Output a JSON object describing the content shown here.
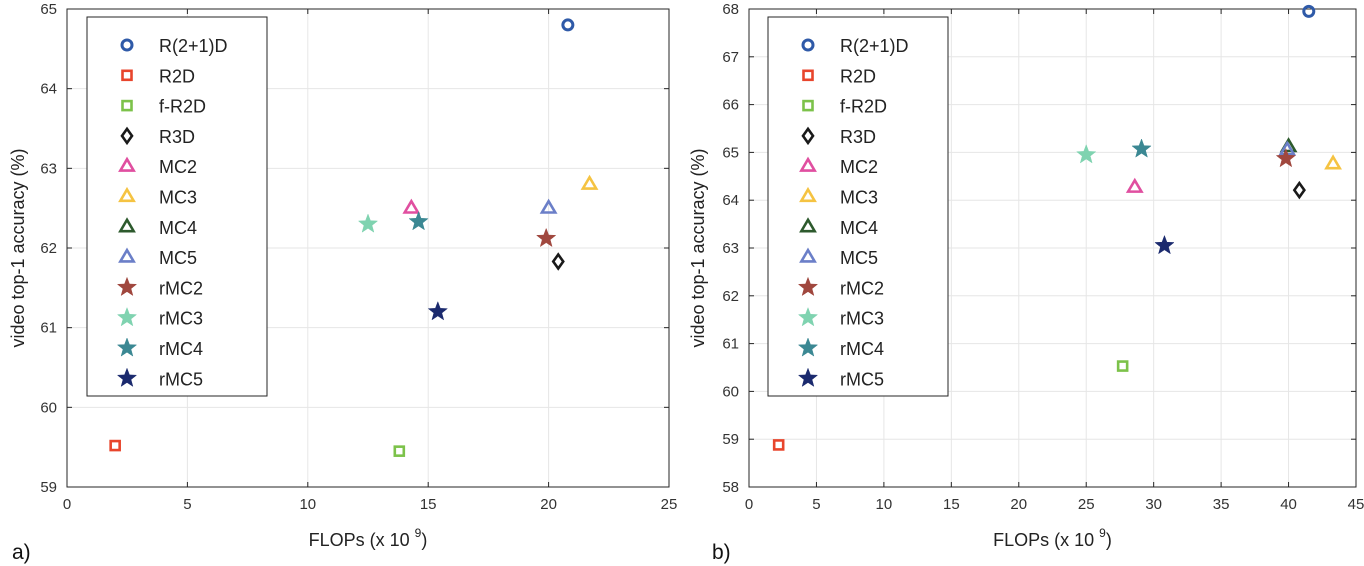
{
  "chart_data": [
    {
      "type": "scatter",
      "panel_label": "a)",
      "xlabel": "FLOPs (x 10",
      "xlabel_sup": "9",
      "xlabel_close": ")",
      "ylabel": "video top-1 accuracy (%)",
      "xlim": [
        0,
        25
      ],
      "ylim": [
        59,
        65
      ],
      "xticks": [
        "0",
        "5",
        "10",
        "15",
        "20",
        "25"
      ],
      "yticks": [
        "59",
        "60",
        "61",
        "62",
        "63",
        "64",
        "65"
      ],
      "grid": true,
      "legend_position": "top-left",
      "series": [
        {
          "name": "R(2+1)D",
          "marker": "circle",
          "color": "#2f5aa8",
          "x": 20.8,
          "y": 64.8
        },
        {
          "name": "R2D",
          "marker": "square",
          "color": "#e8452c",
          "x": 2.0,
          "y": 59.52
        },
        {
          "name": "f-R2D",
          "marker": "square",
          "color": "#7cc24a",
          "x": 13.8,
          "y": 59.45
        },
        {
          "name": "R3D",
          "marker": "diamond",
          "color": "#1a1a1a",
          "x": 20.4,
          "y": 61.83
        },
        {
          "name": "MC2",
          "marker": "triangle",
          "color": "#e04fa0",
          "x": 14.3,
          "y": 62.5
        },
        {
          "name": "MC3",
          "marker": "triangle",
          "color": "#f5c342",
          "x": 21.7,
          "y": 62.8
        },
        {
          "name": "MC4",
          "marker": "triangle",
          "color": "#2d5a2d",
          "x": null,
          "y": null
        },
        {
          "name": "MC5",
          "marker": "triangle",
          "color": "#6b7fc8",
          "x": 20.0,
          "y": 62.5
        },
        {
          "name": "rMC2",
          "marker": "star",
          "color": "#a0473e",
          "x": 19.9,
          "y": 62.12
        },
        {
          "name": "rMC3",
          "marker": "star",
          "color": "#7fd3b0",
          "x": 12.5,
          "y": 62.3
        },
        {
          "name": "rMC4",
          "marker": "star",
          "color": "#3b8893",
          "x": 14.6,
          "y": 62.33
        },
        {
          "name": "rMC5",
          "marker": "star",
          "color": "#1b2a6e",
          "x": 15.4,
          "y": 61.2
        }
      ]
    },
    {
      "type": "scatter",
      "panel_label": "b)",
      "xlabel": "FLOPs (x 10",
      "xlabel_sup": "9",
      "xlabel_close": ")",
      "ylabel": "video top-1 accuracy (%)",
      "xlim": [
        0,
        45
      ],
      "ylim": [
        58,
        68
      ],
      "xticks": [
        "0",
        "5",
        "10",
        "15",
        "20",
        "25",
        "30",
        "35",
        "40",
        "45"
      ],
      "yticks": [
        "58",
        "59",
        "60",
        "61",
        "62",
        "63",
        "64",
        "65",
        "66",
        "67",
        "68"
      ],
      "grid": true,
      "legend_position": "top-left",
      "series": [
        {
          "name": "R(2+1)D",
          "marker": "circle",
          "color": "#2f5aa8",
          "x": 41.5,
          "y": 67.95
        },
        {
          "name": "R2D",
          "marker": "square",
          "color": "#e8452c",
          "x": 2.2,
          "y": 58.88
        },
        {
          "name": "f-R2D",
          "marker": "square",
          "color": "#7cc24a",
          "x": 27.7,
          "y": 60.53
        },
        {
          "name": "R3D",
          "marker": "diamond",
          "color": "#1a1a1a",
          "x": 40.8,
          "y": 64.21
        },
        {
          "name": "MC2",
          "marker": "triangle",
          "color": "#e04fa0",
          "x": 28.6,
          "y": 64.27
        },
        {
          "name": "MC3",
          "marker": "triangle",
          "color": "#f5c342",
          "x": 43.3,
          "y": 64.76
        },
        {
          "name": "MC4",
          "marker": "triangle",
          "color": "#2d5a2d",
          "x": 40.0,
          "y": 65.12
        },
        {
          "name": "MC5",
          "marker": "triangle",
          "color": "#6b7fc8",
          "x": 39.9,
          "y": 65.05
        },
        {
          "name": "rMC2",
          "marker": "star",
          "color": "#a0473e",
          "x": 39.8,
          "y": 64.87
        },
        {
          "name": "rMC3",
          "marker": "star",
          "color": "#7fd3b0",
          "x": 25.0,
          "y": 64.95
        },
        {
          "name": "rMC4",
          "marker": "star",
          "color": "#3b8893",
          "x": 29.1,
          "y": 65.07
        },
        {
          "name": "rMC5",
          "marker": "star",
          "color": "#1b2a6e",
          "x": 30.8,
          "y": 63.05
        }
      ]
    }
  ]
}
